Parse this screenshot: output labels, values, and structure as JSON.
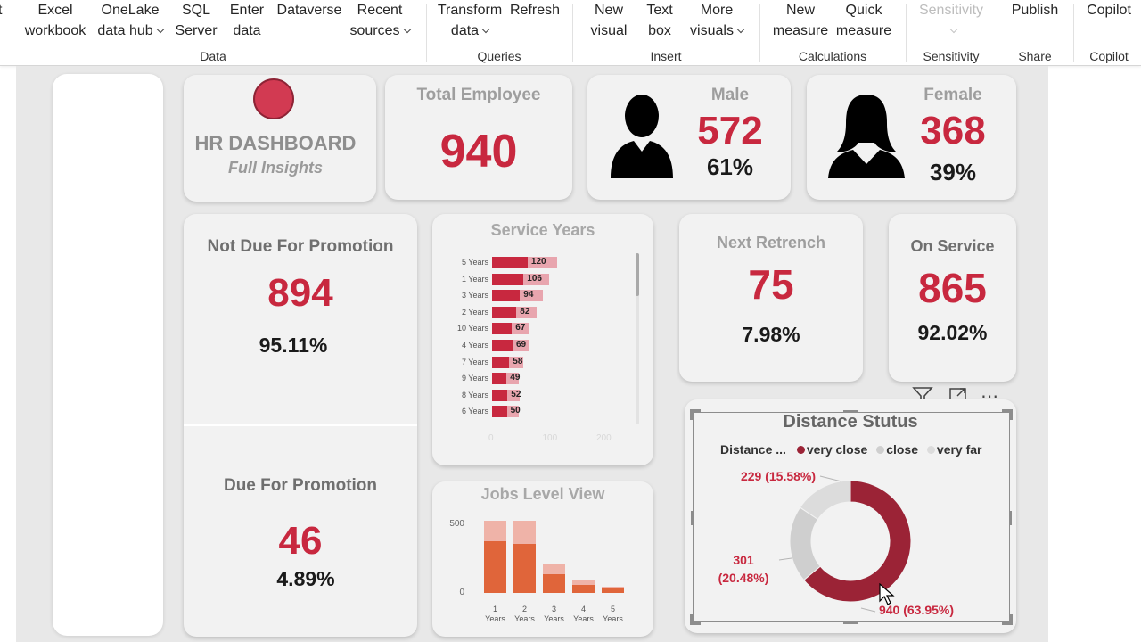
{
  "ribbon": {
    "buttons": {
      "get_data_partial": "t",
      "excel": "Excel\nworkbook",
      "onelake": "OneLake\ndata hub",
      "sql": "SQL\nServer",
      "enter_data": "Enter\ndata",
      "dataverse": "Dataverse",
      "recent": "Recent\nsources",
      "transform": "Transform\ndata",
      "refresh": "Refresh",
      "new_visual": "New\nvisual",
      "text_box": "Text\nbox",
      "more_visuals": "More\nvisuals",
      "new_measure": "New\nmeasure",
      "quick_measure": "Quick\nmeasure",
      "sensitivity": "Sensitivity",
      "publish": "Publish",
      "copilot": "Copilot"
    },
    "groups": {
      "data": "Data",
      "queries": "Queries",
      "insert": "Insert",
      "calculations": "Calculations",
      "sensitivity": "Sensitivity",
      "share": "Share",
      "copilot": "Copilot"
    }
  },
  "dashboard": {
    "title": "HR DASHBOARD",
    "subtitle": "Full Insights",
    "total_employee": {
      "label": "Total Employee",
      "value": "940"
    },
    "male": {
      "label": "Male",
      "value": "572",
      "pct": "61%"
    },
    "female": {
      "label": "Female",
      "value": "368",
      "pct": "39%"
    },
    "not_due": {
      "label": "Not Due For Promotion",
      "value": "894",
      "pct": "95.11%"
    },
    "due": {
      "label": "Due For Promotion",
      "value": "46",
      "pct": "4.89%"
    },
    "next_retrench": {
      "label": "Next Retrench",
      "value": "75",
      "pct": "7.98%"
    },
    "on_service": {
      "label": "On Service",
      "value": "865",
      "pct": "92.02%"
    },
    "colors": {
      "accent": "#c8283f",
      "card": "#f2f2f2",
      "canvas": "#e8e8e8"
    }
  },
  "chart_data": [
    {
      "type": "bar",
      "title": "Service Years",
      "orientation": "horizontal",
      "categories": [
        "5 Years",
        "1 Years",
        "3 Years",
        "2 Years",
        "10 Years",
        "4 Years",
        "7 Years",
        "9 Years",
        "8 Years",
        "6 Years"
      ],
      "values": [
        120,
        106,
        94,
        82,
        67,
        69,
        58,
        49,
        52,
        50
      ],
      "xlim": [
        0,
        200
      ],
      "xticks": [
        "0",
        "100",
        "200"
      ]
    },
    {
      "type": "bar",
      "title": "Jobs Level View",
      "categories": [
        "1\nYears",
        "2\nYears",
        "3\nYears",
        "4\nYears",
        "5\nYears"
      ],
      "series": [
        {
          "values": [
            380,
            360,
            140,
            60,
            40
          ]
        },
        {
          "values": [
            150,
            170,
            70,
            30,
            5
          ]
        }
      ],
      "ylim": [
        0,
        600
      ],
      "yticks": [
        "500",
        "0"
      ]
    },
    {
      "type": "pie",
      "title": "Distance Stutus",
      "legend_title": "Distance ...",
      "legend_position": "top",
      "labels": [
        "very close",
        "close",
        "very far"
      ],
      "values": [
        940,
        301,
        229
      ],
      "data_labels": [
        "940 (63.95%)",
        "301\n(20.48%)",
        "229 (15.58%)"
      ],
      "colors": [
        "#9b2336",
        "#cfcfcf",
        "#dcdcdc"
      ]
    }
  ]
}
